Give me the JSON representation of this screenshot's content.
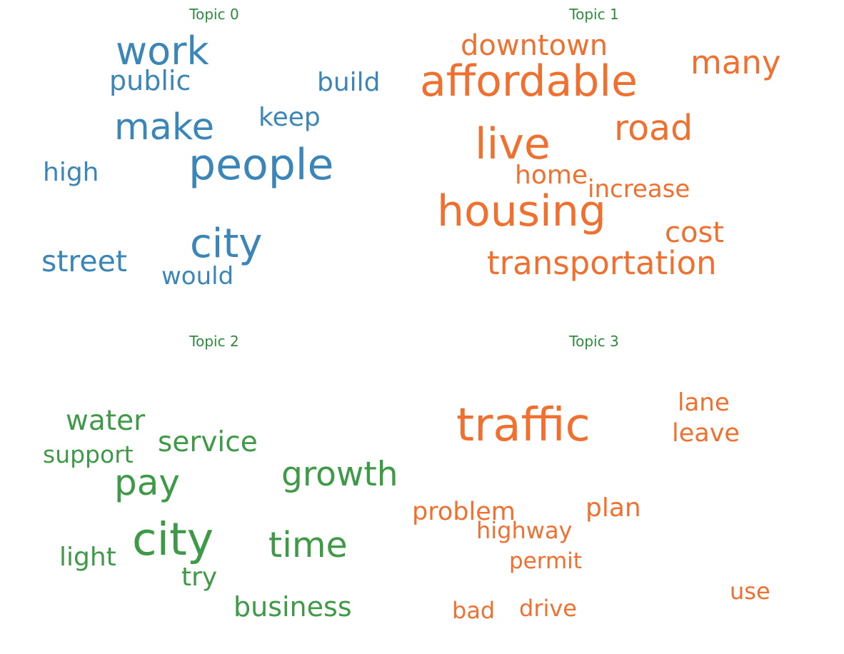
{
  "colors": {
    "title": "#2e8b3e",
    "topic_blue": "#3a86b8",
    "topic_orange": "#f07030",
    "topic_green": "#3f9a48"
  },
  "topics": [
    {
      "title": "Topic 0",
      "color": "#3a86b8",
      "words": [
        "work",
        "public",
        "build",
        "make",
        "keep",
        "people",
        "high",
        "city",
        "street",
        "would"
      ]
    },
    {
      "title": "Topic 1",
      "color": "#f07030",
      "words": [
        "downtown",
        "affordable",
        "many",
        "road",
        "live",
        "home",
        "increase",
        "housing",
        "cost",
        "transportation"
      ]
    },
    {
      "title": "Topic 2",
      "color": "#3f9a48",
      "words": [
        "water",
        "service",
        "support",
        "growth",
        "pay",
        "city",
        "time",
        "light",
        "try",
        "business"
      ]
    },
    {
      "title": "Topic 3",
      "color": "#f07030",
      "words": [
        "lane",
        "traffic",
        "leave",
        "problem",
        "plan",
        "highway",
        "permit",
        "use",
        "bad",
        "drive"
      ]
    }
  ]
}
